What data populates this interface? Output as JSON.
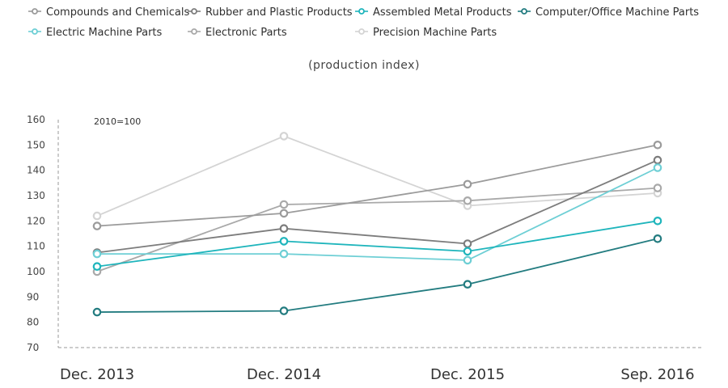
{
  "chart_data": {
    "type": "line",
    "subtitle": "(production index)",
    "note": "2010=100",
    "categories": [
      "Dec. 2013",
      "Dec. 2014",
      "Dec. 2015",
      "Sep. 2016"
    ],
    "ylim": [
      70,
      160
    ],
    "yticks": [
      70,
      80,
      90,
      100,
      110,
      120,
      130,
      140,
      150,
      160
    ],
    "grid": false,
    "legend_position": "top",
    "series": [
      {
        "name": "Compounds and Chemicals",
        "color": "#9b9b9b",
        "values": [
          118,
          123,
          134.5,
          150
        ]
      },
      {
        "name": "Rubber and Plastic Products",
        "color": "#7d7d7d",
        "values": [
          107.5,
          117,
          111,
          144
        ]
      },
      {
        "name": "Assembled Metal Products",
        "color": "#1fb5bc",
        "values": [
          102,
          112,
          108,
          120
        ]
      },
      {
        "name": "Computer/Office Machine Parts",
        "color": "#237c80",
        "values": [
          84,
          84.5,
          95,
          113
        ]
      },
      {
        "name": "Electric Machine Parts",
        "color": "#6ecfd5",
        "values": [
          107,
          107,
          104.5,
          141
        ]
      },
      {
        "name": "Electronic Parts",
        "color": "#a9a9a9",
        "values": [
          100,
          126.5,
          128,
          133
        ]
      },
      {
        "name": "Precision Machine Parts",
        "color": "#d4d4d4",
        "values": [
          122,
          153.5,
          126,
          131
        ]
      }
    ]
  }
}
